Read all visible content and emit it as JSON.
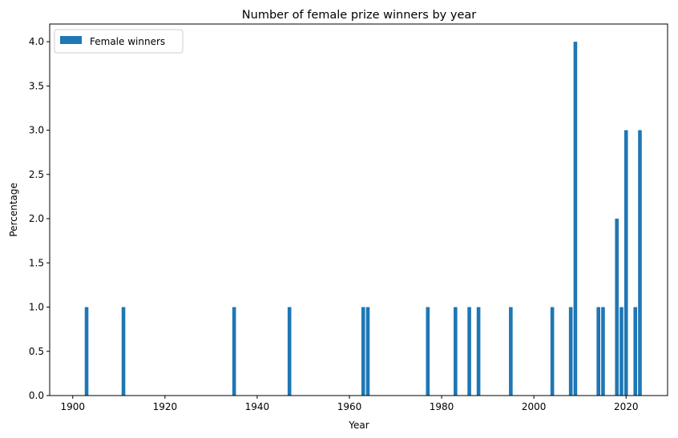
{
  "chart_data": {
    "type": "bar",
    "title": "Number of female prize winners by year",
    "xlabel": "Year",
    "ylabel": "Percentage",
    "xlim": [
      1895,
      2029
    ],
    "ylim": [
      0,
      4.2
    ],
    "xticks": [
      1900,
      1920,
      1940,
      1960,
      1980,
      2000,
      2020
    ],
    "yticks": [
      "0.0",
      "0.5",
      "1.0",
      "1.5",
      "2.0",
      "2.5",
      "3.0",
      "3.5",
      "4.0"
    ],
    "grid": false,
    "legend_position": "top-left",
    "series": [
      {
        "name": "Female winners",
        "color": "#1f77b4",
        "x": [
          1903,
          1911,
          1935,
          1947,
          1963,
          1964,
          1977,
          1983,
          1986,
          1988,
          1995,
          2004,
          2008,
          2009,
          2014,
          2015,
          2018,
          2019,
          2020,
          2022,
          2023
        ],
        "values": [
          1,
          1,
          1,
          1,
          1,
          1,
          1,
          1,
          1,
          1,
          1,
          1,
          1,
          4,
          1,
          1,
          2,
          1,
          3,
          1,
          3
        ]
      }
    ]
  }
}
